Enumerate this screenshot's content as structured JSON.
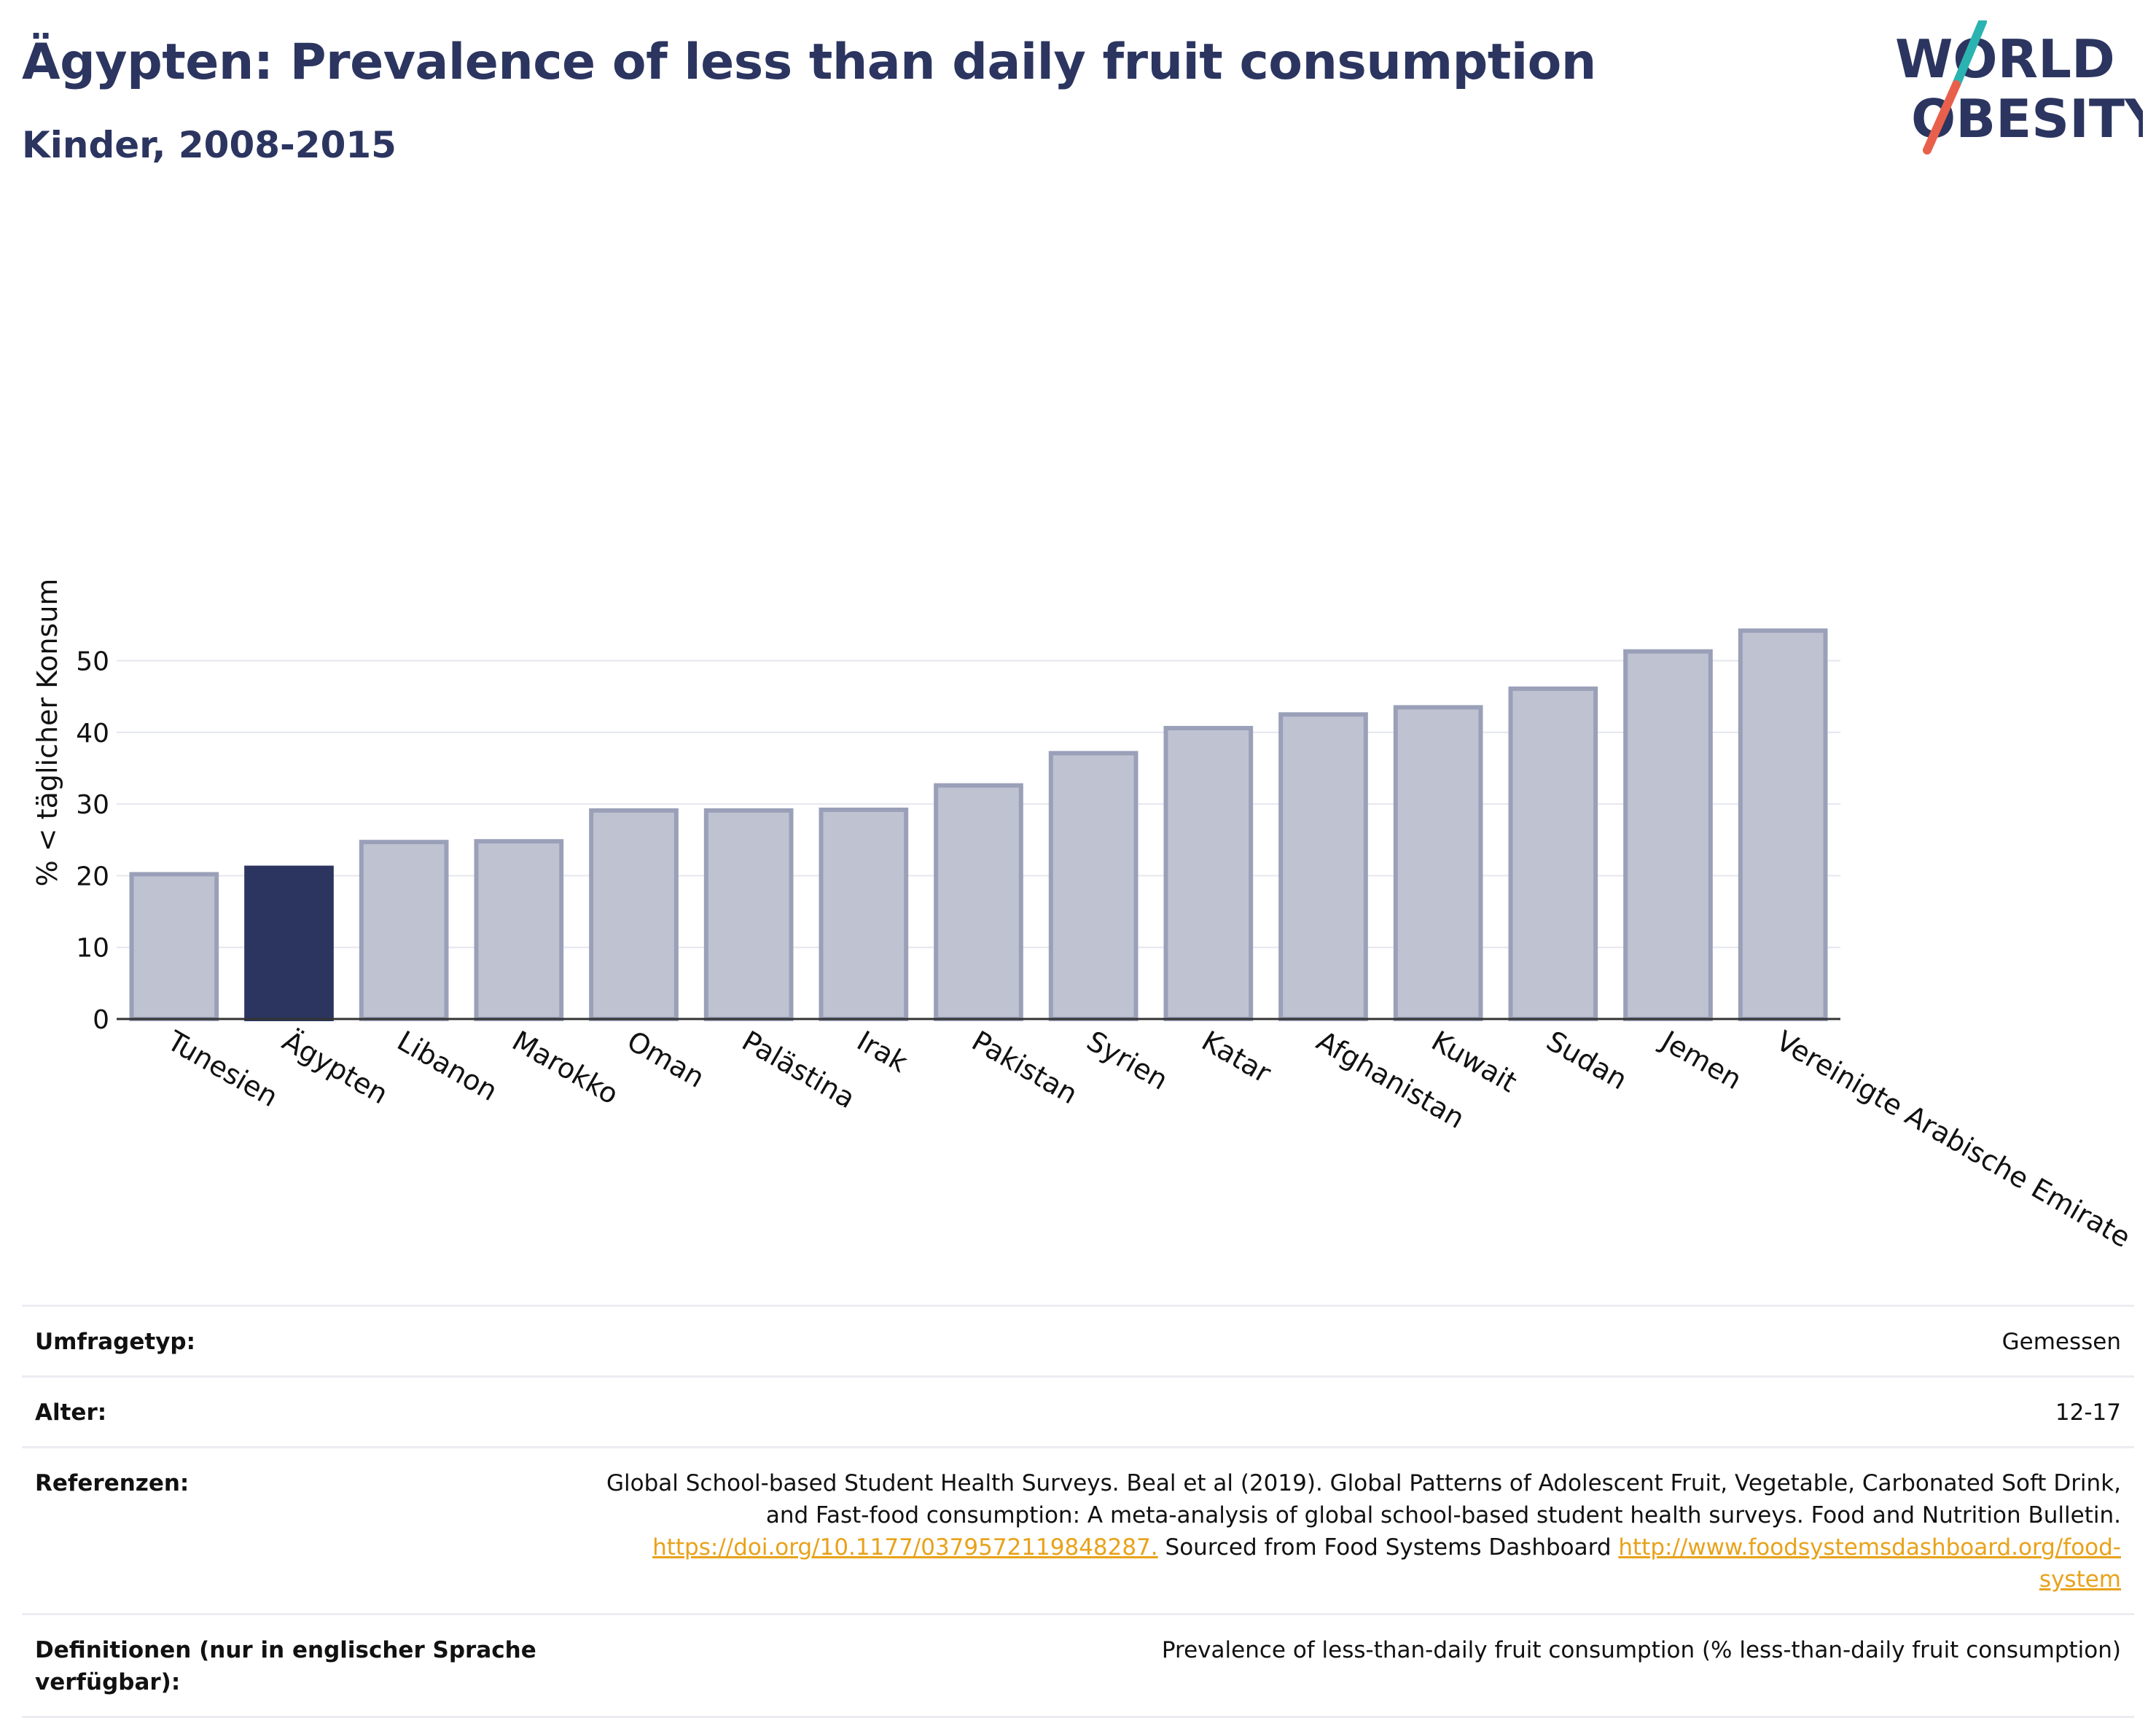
{
  "header": {
    "title": "Ägypten: Prevalence of less than daily fruit consumption",
    "subtitle": "Kinder, 2008-2015"
  },
  "logo": {
    "line1": "WORLD",
    "line2": "OBESITY",
    "colors": {
      "text": "#2b3560",
      "slash_top": "#2bb3b1",
      "slash_bottom": "#e8604c"
    }
  },
  "chart_data": {
    "type": "bar",
    "title": "Ägypten: Prevalence of less than daily fruit consumption",
    "subtitle": "Kinder, 2008-2015",
    "ylabel": "% < täglicher Konsum",
    "xlabel": "",
    "ylim": [
      0,
      55
    ],
    "yticks": [
      0,
      10,
      20,
      30,
      40,
      50
    ],
    "grid": true,
    "highlight": "Ägypten",
    "colors": {
      "bar": "#bfc3d1",
      "bar_border": "#9aa0b8",
      "highlight": "#2b3560",
      "grid": "#e6e7ee",
      "axis": "#333333"
    },
    "categories": [
      "Tunesien",
      "Ägypten",
      "Libanon",
      "Marokko",
      "Oman",
      "Palästina",
      "Irak",
      "Pakistan",
      "Syrien",
      "Katar",
      "Afghanistan",
      "Kuwait",
      "Sudan",
      "Jemen",
      "Vereinigte Arabische Emirate"
    ],
    "values": [
      20.2,
      21.1,
      24.7,
      24.8,
      29.1,
      29.1,
      29.2,
      32.6,
      37.1,
      40.6,
      42.5,
      43.5,
      46.1,
      51.3,
      54.2
    ]
  },
  "info": [
    {
      "label": "Umfragetyp:",
      "value": "Gemessen"
    },
    {
      "label": "Alter:",
      "value": "12-17"
    },
    {
      "label": "Referenzen:",
      "value_line1": "Global School-based Student Health Surveys. Beal et al (2019). Global Patterns of Adolescent Fruit, Vegetable, Carbonated Soft Drink,",
      "value_line2": "and Fast-food consumption: A meta-analysis of global school-based student health surveys. Food and Nutrition Bulletin.",
      "link1": "https://doi.org/10.1177/0379572119848287.",
      "mid_text": " Sourced from Food Systems Dashboard ",
      "link2a": "http://www.foodsystemsdashboard.org/food-",
      "link2b": "system"
    },
    {
      "label_line1": "Definitionen (nur in englischer Sprache",
      "label_line2": "verfügbar):",
      "value": "Prevalence of less-than-daily fruit consumption (% less-than-daily fruit consumption)"
    }
  ]
}
